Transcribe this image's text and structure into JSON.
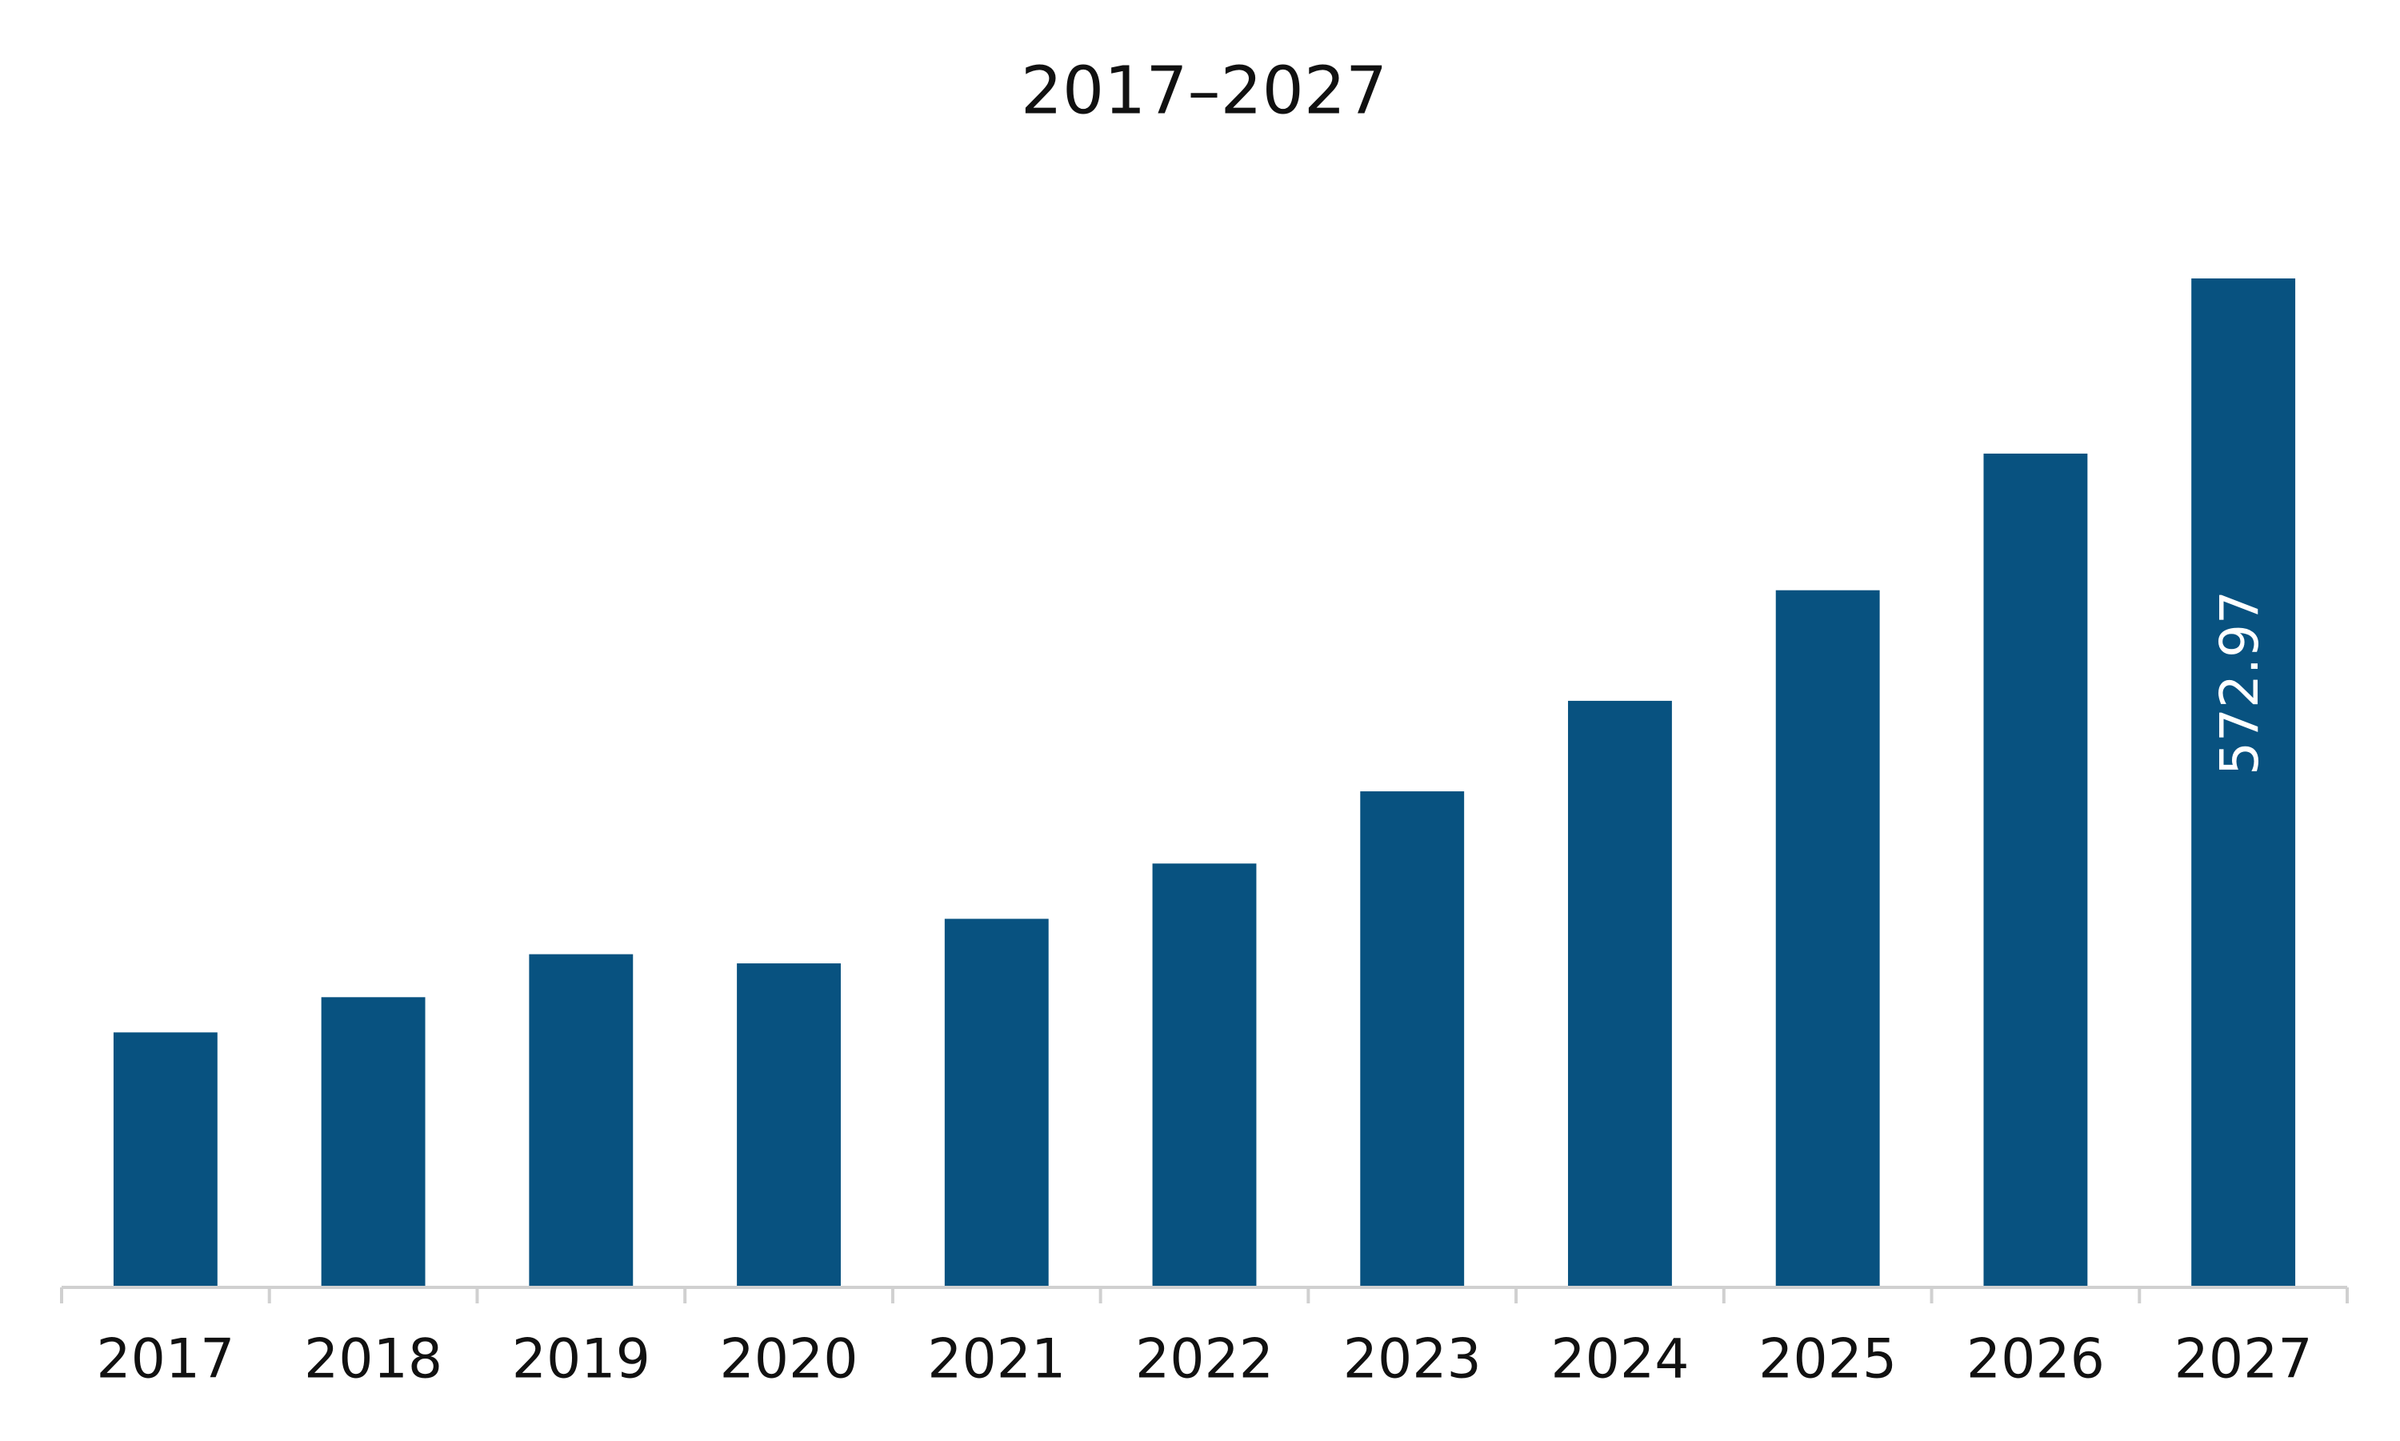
{
  "chart_data": {
    "type": "bar",
    "title": "2017–2027",
    "categories": [
      "2017",
      "2018",
      "2019",
      "2020",
      "2021",
      "2022",
      "2023",
      "2024",
      "2025",
      "2026",
      "2027"
    ],
    "values": [
      144.8,
      164.8,
      189.2,
      184.0,
      209.3,
      240.7,
      281.7,
      333.1,
      395.9,
      473.5,
      572.97
    ],
    "show_value": [
      false,
      false,
      false,
      false,
      false,
      false,
      false,
      false,
      false,
      false,
      true
    ],
    "color": "#085280"
  }
}
